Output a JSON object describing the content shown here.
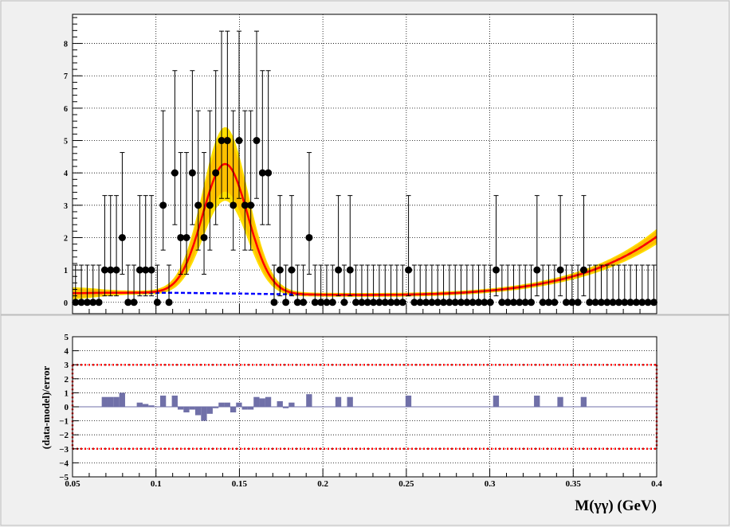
{
  "chart_data": [
    {
      "type": "scatter",
      "panel": "main",
      "title": "",
      "xlabel": "",
      "ylabel": "",
      "xlim": [
        0.05,
        0.4
      ],
      "ylim": [
        -0.35,
        8.9
      ],
      "grid": true,
      "yticks": [
        0,
        1,
        2,
        3,
        4,
        5,
        6,
        7,
        8
      ],
      "data_points": {
        "x": [
          0.0518,
          0.0553,
          0.0588,
          0.0623,
          0.0658,
          0.0693,
          0.0728,
          0.0763,
          0.0798,
          0.0833,
          0.0868,
          0.0903,
          0.0938,
          0.0973,
          0.1008,
          0.1043,
          0.1078,
          0.1113,
          0.1148,
          0.1183,
          0.1218,
          0.1253,
          0.1288,
          0.1323,
          0.1358,
          0.1393,
          0.1428,
          0.1463,
          0.1498,
          0.1533,
          0.1568,
          0.1603,
          0.1638,
          0.1673,
          0.1708,
          0.1743,
          0.1778,
          0.1813,
          0.1848,
          0.1883,
          0.1918,
          0.1953,
          0.1988,
          0.2023,
          0.2058,
          0.2093,
          0.2128,
          0.2163,
          0.2198,
          0.2233,
          0.2268,
          0.2303,
          0.2338,
          0.2373,
          0.2408,
          0.2443,
          0.2478,
          0.2513,
          0.2548,
          0.2583,
          0.2618,
          0.2653,
          0.2688,
          0.2723,
          0.2758,
          0.2793,
          0.2828,
          0.2863,
          0.2898,
          0.2933,
          0.2968,
          0.3003,
          0.3038,
          0.3073,
          0.3108,
          0.3143,
          0.3178,
          0.3213,
          0.3248,
          0.3283,
          0.3318,
          0.3353,
          0.3388,
          0.3423,
          0.3458,
          0.3493,
          0.3528,
          0.3563,
          0.3598,
          0.3633,
          0.3668,
          0.3703,
          0.3738,
          0.3773,
          0.3808,
          0.3843,
          0.3878,
          0.3913,
          0.3948,
          0.3983
        ],
        "y": [
          0,
          0,
          0,
          0,
          0,
          1,
          1,
          1,
          2,
          0,
          0,
          1,
          1,
          1,
          0,
          3,
          0,
          4,
          2,
          2,
          4,
          3,
          2,
          3,
          4,
          5,
          5,
          3,
          5,
          3,
          3,
          5,
          4,
          4,
          0,
          1,
          0,
          1,
          0,
          0,
          2,
          0,
          0,
          0,
          0,
          1,
          0,
          1,
          0,
          0,
          0,
          0,
          0,
          0,
          0,
          0,
          0,
          1,
          0,
          0,
          0,
          0,
          0,
          0,
          0,
          0,
          0,
          0,
          0,
          0,
          0,
          0,
          1,
          0,
          0,
          0,
          0,
          0,
          0,
          1,
          0,
          0,
          0,
          1,
          0,
          0,
          0,
          1,
          0,
          0,
          0,
          0,
          0,
          0,
          0,
          0,
          0,
          0,
          0,
          0
        ],
        "error_up": [
          1.15,
          1.15,
          1.15,
          1.15,
          1.15,
          2.3,
          2.3,
          2.3,
          2.63,
          1.15,
          1.15,
          2.3,
          2.3,
          2.3,
          1.15,
          2.92,
          1.15,
          3.16,
          2.63,
          2.63,
          3.16,
          2.92,
          2.63,
          2.92,
          3.16,
          3.38,
          3.38,
          2.92,
          3.38,
          2.92,
          2.92,
          3.38,
          3.16,
          3.16,
          1.15,
          2.3,
          1.15,
          2.3,
          1.15,
          1.15,
          2.63,
          1.15,
          1.15,
          1.15,
          1.15,
          2.3,
          1.15,
          2.3,
          1.15,
          1.15,
          1.15,
          1.15,
          1.15,
          1.15,
          1.15,
          1.15,
          1.15,
          2.3,
          1.15,
          1.15,
          1.15,
          1.15,
          1.15,
          1.15,
          1.15,
          1.15,
          1.15,
          1.15,
          1.15,
          1.15,
          1.15,
          1.15,
          2.3,
          1.15,
          1.15,
          1.15,
          1.15,
          1.15,
          1.15,
          2.3,
          1.15,
          1.15,
          1.15,
          2.3,
          1.15,
          1.15,
          1.15,
          2.3,
          1.15,
          1.15,
          1.15,
          1.15,
          1.15,
          1.15,
          1.15,
          1.15,
          1.15,
          1.15,
          1.15,
          1.15
        ]
      },
      "fit": {
        "name": "total",
        "color": "#ff0000",
        "band_color": "#ffc000",
        "band_edge_color": "#ffe000",
        "signal": {
          "mean": 0.1415,
          "sigma": 0.0135,
          "amplitude": 4.0,
          "band_half_width": 1.2
        },
        "background": {
          "a": 0.45,
          "b": 0.24,
          "c": 2.6,
          "d": -9.9
        }
      },
      "background_curve": {
        "name": "background",
        "color": "#0000ff",
        "style": "dashed"
      }
    },
    {
      "type": "bar",
      "panel": "pull",
      "title": "",
      "xlabel": "M(γγ) (GeV)",
      "ylabel": "(data-model)/error",
      "xlim": [
        0.05,
        0.4
      ],
      "ylim": [
        -5,
        5
      ],
      "grid": true,
      "xticks": [
        0.05,
        0.1,
        0.15,
        0.2,
        0.25,
        0.3,
        0.35,
        0.4
      ],
      "xtick_labels": [
        "0.05",
        "0.1",
        "0.15",
        "0.2",
        "0.25",
        "0.3",
        "0.35",
        "0.4"
      ],
      "yticks": [
        -5,
        -4,
        -3,
        -2,
        -1,
        0,
        1,
        2,
        3,
        4,
        5
      ],
      "ytick_labels": [
        "−5",
        "−4",
        "−3",
        "−2",
        "−1",
        "0",
        "1",
        "2",
        "3",
        "4",
        "5"
      ],
      "bar_color": "#7070a8",
      "reference_lines": [
        {
          "y": 3,
          "color": "#ff0000",
          "style": "dotted"
        },
        {
          "y": -3,
          "color": "#ff0000",
          "style": "dotted"
        }
      ],
      "values": [
        0,
        0,
        0,
        0,
        0,
        0.7,
        0.7,
        0.7,
        1.0,
        0,
        0,
        0.3,
        0.2,
        0.1,
        0,
        0.8,
        0,
        0.8,
        -0.2,
        -0.4,
        -0.2,
        -0.6,
        -1.0,
        -0.5,
        -0.1,
        0.3,
        0.3,
        -0.4,
        0.3,
        -0.2,
        -0.2,
        0.7,
        0.6,
        0.7,
        0,
        0.4,
        -0.1,
        0.3,
        0,
        0,
        0.9,
        0,
        0,
        0,
        0,
        0.7,
        0,
        0.7,
        0,
        0,
        0,
        0,
        0,
        0,
        0,
        0,
        0,
        0.8,
        0,
        0,
        0,
        0,
        0,
        0,
        0,
        0,
        0,
        0,
        0,
        0,
        0,
        0,
        0.8,
        0,
        0,
        0,
        0,
        0,
        0,
        0.8,
        0,
        0,
        0,
        0.7,
        0,
        0,
        0,
        0.7,
        0,
        0,
        0,
        0,
        0,
        0,
        0,
        0,
        0,
        0,
        0,
        0
      ]
    }
  ]
}
